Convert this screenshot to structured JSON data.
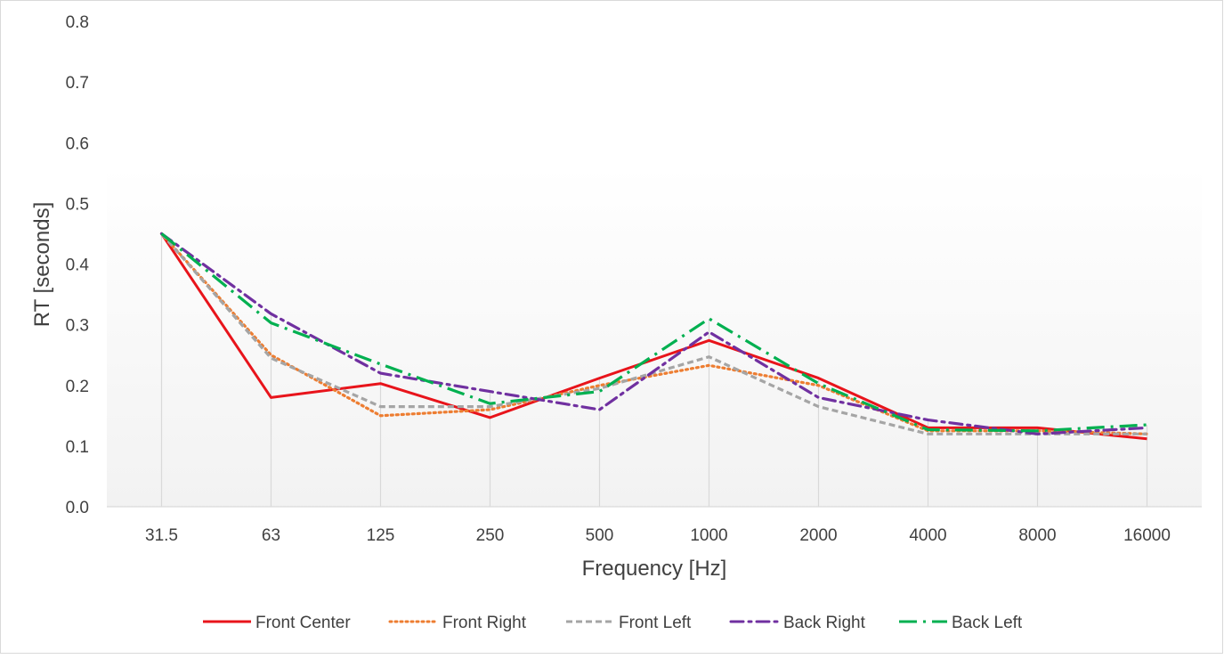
{
  "chart_data": {
    "type": "line",
    "title": "",
    "xlabel": "Frequency [Hz]",
    "ylabel": "RT [seconds]",
    "ylim": [
      0,
      0.8
    ],
    "yticks": [
      "0.0",
      "0.1",
      "0.2",
      "0.3",
      "0.4",
      "0.5",
      "0.6",
      "0.7",
      "0.8"
    ],
    "categories": [
      "31.5",
      "63",
      "125",
      "250",
      "500",
      "1000",
      "2000",
      "4000",
      "8000",
      "16000"
    ],
    "grid": "vertical lines at categories",
    "legend_position": "bottom",
    "series": [
      {
        "name": "Front Center",
        "color": "#e8141b",
        "style": "solid",
        "values": [
          0.45,
          0.18,
          0.203,
          0.147,
          0.212,
          0.274,
          0.212,
          0.13,
          0.13,
          0.112
        ]
      },
      {
        "name": "Front Right",
        "color": "#ed7d31",
        "style": "dotted",
        "values": [
          0.45,
          0.25,
          0.15,
          0.16,
          0.2,
          0.233,
          0.2,
          0.125,
          0.125,
          0.12
        ]
      },
      {
        "name": "Front Left",
        "color": "#a5a5a5",
        "style": "dashed",
        "values": [
          0.45,
          0.245,
          0.165,
          0.165,
          0.195,
          0.247,
          0.165,
          0.12,
          0.12,
          0.12
        ]
      },
      {
        "name": "Back Right",
        "color": "#7030a0",
        "style": "dashdot",
        "values": [
          0.45,
          0.318,
          0.22,
          0.19,
          0.16,
          0.288,
          0.18,
          0.143,
          0.12,
          0.13
        ]
      },
      {
        "name": "Back Left",
        "color": "#00b050",
        "style": "longdashdot",
        "values": [
          0.45,
          0.303,
          0.235,
          0.17,
          0.19,
          0.31,
          0.203,
          0.127,
          0.125,
          0.135
        ]
      }
    ]
  }
}
